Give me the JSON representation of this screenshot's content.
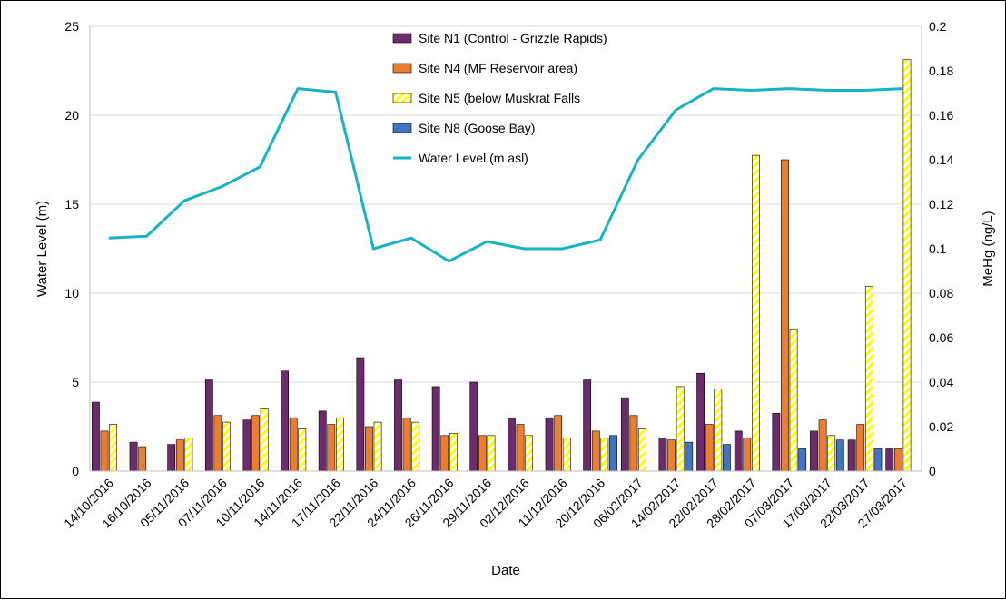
{
  "chart_data": {
    "type": "bar",
    "categories": [
      "14/10/2016",
      "16/10/2016",
      "05/11/2016",
      "07/11/2016",
      "10/11/2016",
      "14/11/2016",
      "17/11/2016",
      "22/11/2016",
      "24/11/2016",
      "26/11/2016",
      "29/11/2016",
      "02/12/2016",
      "11/12/2016",
      "20/12/2016",
      "06/02/2017",
      "14/02/2017",
      "22/02/2017",
      "28/02/2017",
      "07/03/2017",
      "17/03/2017",
      "22/03/2017",
      "27/03/2017"
    ],
    "xlabel": "Date",
    "ylabel": "Water Level (m)",
    "y2label": "MeHg (ng/L)",
    "ylim": [
      0,
      25
    ],
    "y2lim": [
      0,
      0.2
    ],
    "yticks": [
      "0",
      "5",
      "10",
      "15",
      "20",
      "25"
    ],
    "y2ticks": [
      "0",
      "0.02",
      "0.04",
      "0.06",
      "0.08",
      "0.1",
      "0.12",
      "0.14",
      "0.16",
      "0.18",
      "0.2"
    ],
    "grid": "horizontal",
    "legend_position": "top-center",
    "series": [
      {
        "name": "Site N1 (Control - Grizzle Rapids)",
        "axis": "right",
        "kind": "bar",
        "color": "#6B2C6B",
        "values": [
          0.031,
          0.013,
          0.012,
          0.041,
          0.023,
          0.045,
          0.027,
          0.051,
          0.041,
          0.038,
          0.04,
          0.024,
          0.024,
          0.041,
          0.033,
          0.015,
          0.044,
          0.018,
          0.026,
          0.018,
          0.014,
          0.01
        ]
      },
      {
        "name": "Site N4 (MF Reservoir area)",
        "axis": "right",
        "kind": "bar",
        "color": "#ED7D31",
        "values": [
          0.018,
          0.011,
          0.014,
          0.025,
          0.025,
          0.024,
          0.021,
          0.02,
          0.024,
          0.016,
          0.016,
          0.021,
          0.025,
          0.018,
          0.025,
          0.014,
          0.021,
          0.015,
          0.14,
          0.023,
          0.021,
          0.01
        ]
      },
      {
        "name": "Site N5 (below Muskrat Falls",
        "axis": "right",
        "kind": "hatched-bar",
        "color": "#FFFF00",
        "values": [
          0.021,
          null,
          0.015,
          0.022,
          0.028,
          0.019,
          0.024,
          0.022,
          0.022,
          0.017,
          0.016,
          0.016,
          0.015,
          0.015,
          0.019,
          0.038,
          0.037,
          0.142,
          0.064,
          0.016,
          0.083,
          0.185
        ]
      },
      {
        "name": "Site N8 (Goose Bay)",
        "axis": "right",
        "kind": "bar",
        "color": "#4472C4",
        "values": [
          null,
          null,
          null,
          null,
          null,
          null,
          null,
          null,
          null,
          null,
          null,
          null,
          null,
          0.016,
          null,
          0.013,
          0.012,
          null,
          0.01,
          0.014,
          0.01,
          null
        ]
      },
      {
        "name": "Water Level (m asl)",
        "axis": "left",
        "kind": "line",
        "color": "#17B2C4",
        "values": [
          13.1,
          13.2,
          15.2,
          16.0,
          17.1,
          21.5,
          21.3,
          12.5,
          13.1,
          11.8,
          12.9,
          12.5,
          12.5,
          13.0,
          17.5,
          20.3,
          21.5,
          21.4,
          21.5,
          21.4,
          21.4,
          21.5
        ]
      }
    ]
  }
}
